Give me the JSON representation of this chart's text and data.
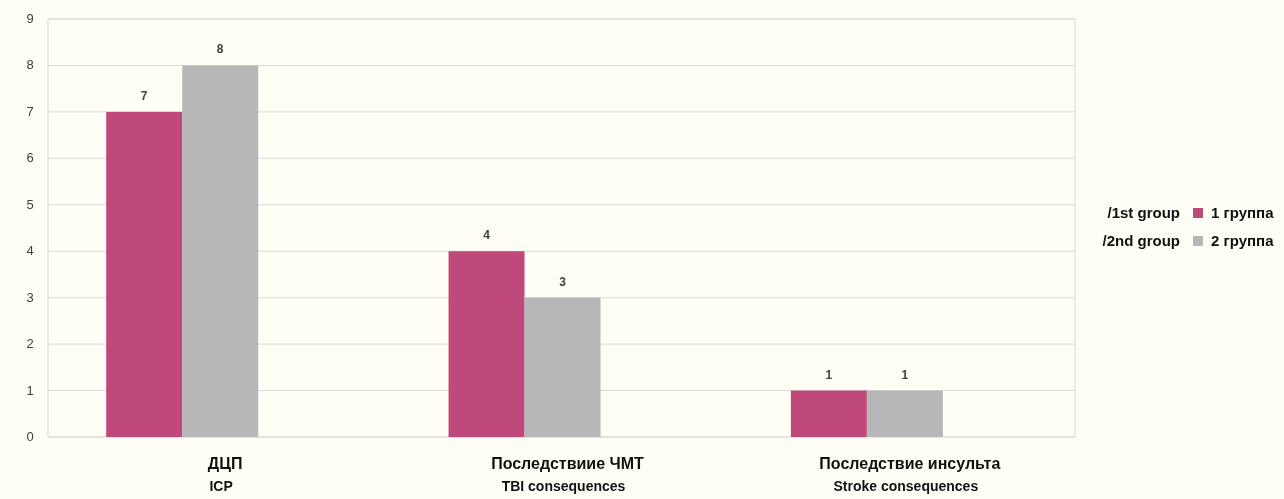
{
  "chart_data": {
    "type": "bar",
    "categories": [
      "ДЦП\nICP",
      "Последствиие ЧМТ\nTBI consequences",
      "Последствие инсульта\nStroke consequences"
    ],
    "series": [
      {
        "name": "1 группа",
        "color": "#c0497b",
        "values": [
          7,
          4,
          1
        ]
      },
      {
        "name": "2 группа",
        "color": "#b7b7b7",
        "values": [
          8,
          3,
          1
        ]
      }
    ],
    "annotations": [
      "/1st group",
      "/2nd group"
    ],
    "ylim": [
      0,
      9
    ],
    "yticks": [
      0,
      1,
      2,
      3,
      4,
      5,
      6,
      7,
      8,
      9
    ],
    "grid": "y",
    "legend": "right",
    "data_labels": true
  }
}
